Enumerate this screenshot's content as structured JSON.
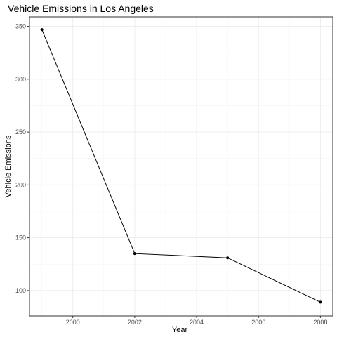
{
  "chart_data": {
    "type": "line",
    "title": "Vehicle Emissions in Los Angeles",
    "xlabel": "Year",
    "ylabel": "Vehicle Emissions",
    "x": [
      1999,
      2002,
      2005,
      2008
    ],
    "series": [
      {
        "values": [
          347,
          135,
          131,
          89
        ]
      }
    ],
    "xlim": [
      1998.6,
      2008.4
    ],
    "ylim": [
      76,
      359
    ],
    "xticks": [
      "2000",
      "2002",
      "2004",
      "2006",
      "2008"
    ],
    "yticks": [
      "100",
      "150",
      "200",
      "250",
      "300",
      "350"
    ],
    "grid": true,
    "legend": "none",
    "colors": {
      "line": "#000000",
      "grid": "#ebebeb",
      "border": "#333333"
    }
  }
}
